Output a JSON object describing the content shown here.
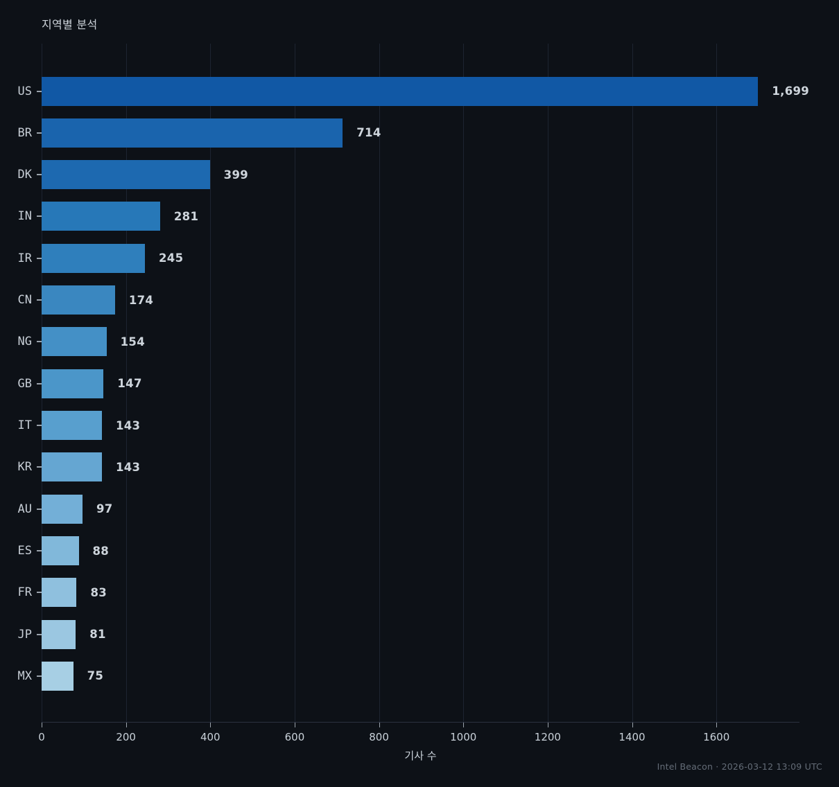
{
  "header": {
    "title": "지역별 분석"
  },
  "footer": {
    "credit": "Intel Beacon · 2026-03-12 13:09 UTC"
  },
  "colors": {
    "background": "#0d1117",
    "gridline": "#1d2431",
    "axis_line": "#2b3240",
    "tick_mark": "#9aa2ab",
    "tick_label": "#c9d1d9",
    "category_label": "#c6cdd5",
    "value_label": "#ced5dc",
    "title_text": "#ccd2d9",
    "footer_text": "#646c77"
  },
  "chart_data": {
    "type": "bar",
    "orientation": "horizontal",
    "title": "지역별 분석",
    "xlabel": "기사 수",
    "ylabel": "",
    "categories": [
      "US",
      "BR",
      "DK",
      "IN",
      "IR",
      "CN",
      "NG",
      "GB",
      "IT",
      "KR",
      "AU",
      "ES",
      "FR",
      "JP",
      "MX"
    ],
    "values": [
      1699,
      714,
      399,
      281,
      245,
      174,
      154,
      147,
      143,
      143,
      97,
      88,
      83,
      81,
      75
    ],
    "value_labels": [
      "1,699",
      "714",
      "399",
      "281",
      "245",
      "174",
      "154",
      "147",
      "143",
      "143",
      "97",
      "88",
      "83",
      "81",
      "75"
    ],
    "bar_colors": [
      "#1158a5",
      "#1a64ad",
      "#1d69b0",
      "#2778b8",
      "#2f7fbc",
      "#3a87c0",
      "#4490c6",
      "#4b96c9",
      "#589fce",
      "#65a6d2",
      "#73afd7",
      "#81b8da",
      "#8fc0de",
      "#9bc7e1",
      "#a7cfe4"
    ],
    "xticks": [
      0,
      200,
      400,
      600,
      800,
      1000,
      1200,
      1400,
      1600
    ],
    "xlim": [
      0,
      1797
    ],
    "grid": true,
    "legend": false
  }
}
